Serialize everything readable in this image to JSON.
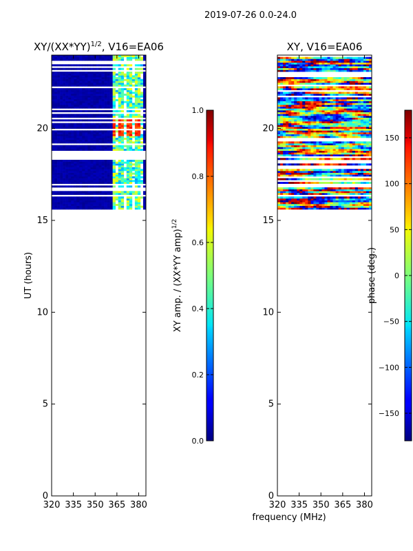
{
  "suptitle": "2019-07-26 0.0-24.0",
  "xlabel": "frequency (MHz)",
  "colors": {
    "bad": "#ffffff",
    "low": "#00007f",
    "high": "#7f0000"
  },
  "chart_data": [
    {
      "type": "heatmap",
      "title_main": "XY/(XX*YY)",
      "title_sup": "1/2",
      "title_tail": ", V16=EA06",
      "xlabel": "",
      "ylabel": "UT (hours)",
      "xlim": [
        320,
        385
      ],
      "ylim": [
        0,
        24
      ],
      "xticks": [
        "320",
        "335",
        "350",
        "365",
        "380"
      ],
      "yticks": [
        "0",
        "5",
        "10",
        "15",
        "20"
      ],
      "x": [
        320,
        335,
        350,
        365,
        380
      ],
      "y": [
        0,
        5,
        10,
        15,
        20
      ],
      "data_time_range": [
        15.6,
        24.0
      ],
      "rfi_band_mhz": [
        362,
        382
      ],
      "typical_value_clean": 0.02,
      "typical_value_rfi": 0.45,
      "peak_value_rfi_block": [
        19.6,
        20.4,
        0.9
      ],
      "colormap": "jet",
      "colorbar": {
        "label_main": "XY amp. / (XX*YY amp)",
        "label_sup": "1/2",
        "range": [
          0.0,
          1.0
        ],
        "ticks": [
          "0.0",
          "0.2",
          "0.4",
          "0.6",
          "0.8",
          "1.0"
        ],
        "tick_values": [
          0.0,
          0.2,
          0.4,
          0.6,
          0.8,
          1.0
        ]
      }
    },
    {
      "type": "heatmap",
      "title": "XY, V16=EA06",
      "xlabel": "",
      "ylabel": "",
      "xlim": [
        320,
        385
      ],
      "ylim": [
        0,
        24
      ],
      "xticks": [
        "320",
        "335",
        "350",
        "365",
        "380"
      ],
      "yticks": [
        "0",
        "5",
        "10",
        "15",
        "20"
      ],
      "x": [
        320,
        335,
        350,
        365,
        380
      ],
      "y": [
        0,
        5,
        10,
        15,
        20
      ],
      "data_time_range": [
        15.6,
        24.0
      ],
      "value_range_deg": [
        -180,
        180
      ],
      "colormap": "jet",
      "colorbar": {
        "label": "phase (deg.)",
        "range": [
          -180,
          180
        ],
        "ticks": [
          "−150",
          "−100",
          "−50",
          "0",
          "50",
          "100",
          "150"
        ],
        "tick_values": [
          -150,
          -100,
          -50,
          0,
          50,
          100,
          150
        ]
      }
    }
  ]
}
